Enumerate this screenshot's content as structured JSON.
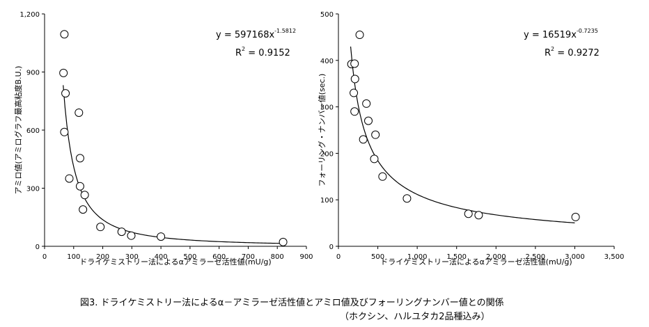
{
  "caption": {
    "line1": "図3.  ドライケミストリー法によるα－アミラーゼ活性値とアミロ値及びフォーリングナンバー値との関係",
    "line2": "（ホクシン、ハルユタカ2品種込み）"
  },
  "chart_data": [
    {
      "type": "scatter",
      "xlabel": "ドライケミストリー法によるαアミラーゼ活性値(mU/g)",
      "ylabel": "アミロ値(アミログラフ最高粘度B.U.)",
      "xlim": [
        0,
        900
      ],
      "ylim": [
        0,
        1200
      ],
      "x_ticks": [
        0,
        100,
        200,
        300,
        400,
        500,
        600,
        700,
        800,
        900
      ],
      "y_ticks": [
        0,
        300,
        600,
        900,
        1200
      ],
      "x_tick_labels": [
        "0",
        "100",
        "200",
        "300",
        "400",
        "500",
        "600",
        "700",
        "800",
        "900"
      ],
      "y_tick_labels": [
        "0",
        "300",
        "600",
        "900",
        "1,200"
      ],
      "grid": false,
      "points": [
        {
          "x": 68,
          "y": 1095
        },
        {
          "x": 65,
          "y": 895
        },
        {
          "x": 72,
          "y": 790
        },
        {
          "x": 68,
          "y": 590
        },
        {
          "x": 85,
          "y": 350
        },
        {
          "x": 118,
          "y": 690
        },
        {
          "x": 122,
          "y": 455
        },
        {
          "x": 122,
          "y": 310
        },
        {
          "x": 138,
          "y": 265
        },
        {
          "x": 132,
          "y": 190
        },
        {
          "x": 192,
          "y": 100
        },
        {
          "x": 265,
          "y": 75
        },
        {
          "x": 298,
          "y": 55
        },
        {
          "x": 400,
          "y": 50
        },
        {
          "x": 820,
          "y": 22
        }
      ],
      "trend": {
        "type": "power",
        "a": 597168,
        "b": -1.5812,
        "x_range": [
          64,
          815
        ],
        "equation_base": "y = 597168x",
        "equation_exponent": "-1.5812",
        "r2_base": "R",
        "r2_exponent": "2",
        "r2_value": " = 0.9152"
      }
    },
    {
      "type": "scatter",
      "xlabel": "ドライケミストリー法によるαアミラーゼ活性値(mU/g)",
      "ylabel": "フォーリング・ナンバー値(sec.)",
      "xlim": [
        0,
        3500
      ],
      "ylim": [
        0,
        500
      ],
      "x_ticks": [
        0,
        500,
        1000,
        1500,
        2000,
        2500,
        3000,
        3500
      ],
      "y_ticks": [
        0,
        100,
        200,
        300,
        400,
        500
      ],
      "x_tick_labels": [
        "0",
        "500",
        "1,000",
        "1,500",
        "2,000",
        "2,500",
        "3,000",
        "3,500"
      ],
      "y_tick_labels": [
        "0",
        "100",
        "200",
        "300",
        "400",
        "500"
      ],
      "grid": false,
      "points": [
        {
          "x": 270,
          "y": 455
        },
        {
          "x": 165,
          "y": 392
        },
        {
          "x": 205,
          "y": 393
        },
        {
          "x": 210,
          "y": 360
        },
        {
          "x": 195,
          "y": 330
        },
        {
          "x": 205,
          "y": 290
        },
        {
          "x": 355,
          "y": 307
        },
        {
          "x": 380,
          "y": 270
        },
        {
          "x": 315,
          "y": 230
        },
        {
          "x": 470,
          "y": 240
        },
        {
          "x": 455,
          "y": 188
        },
        {
          "x": 560,
          "y": 150
        },
        {
          "x": 870,
          "y": 103
        },
        {
          "x": 1650,
          "y": 70
        },
        {
          "x": 1780,
          "y": 67
        },
        {
          "x": 3010,
          "y": 63
        }
      ],
      "trend": {
        "type": "power",
        "a": 16519,
        "b": -0.7235,
        "x_range": [
          155,
          3000
        ],
        "equation_base": "y = 16519x",
        "equation_exponent": "-0.7235",
        "r2_base": "R",
        "r2_exponent": "2",
        "r2_value": " = 0.9272"
      }
    }
  ]
}
